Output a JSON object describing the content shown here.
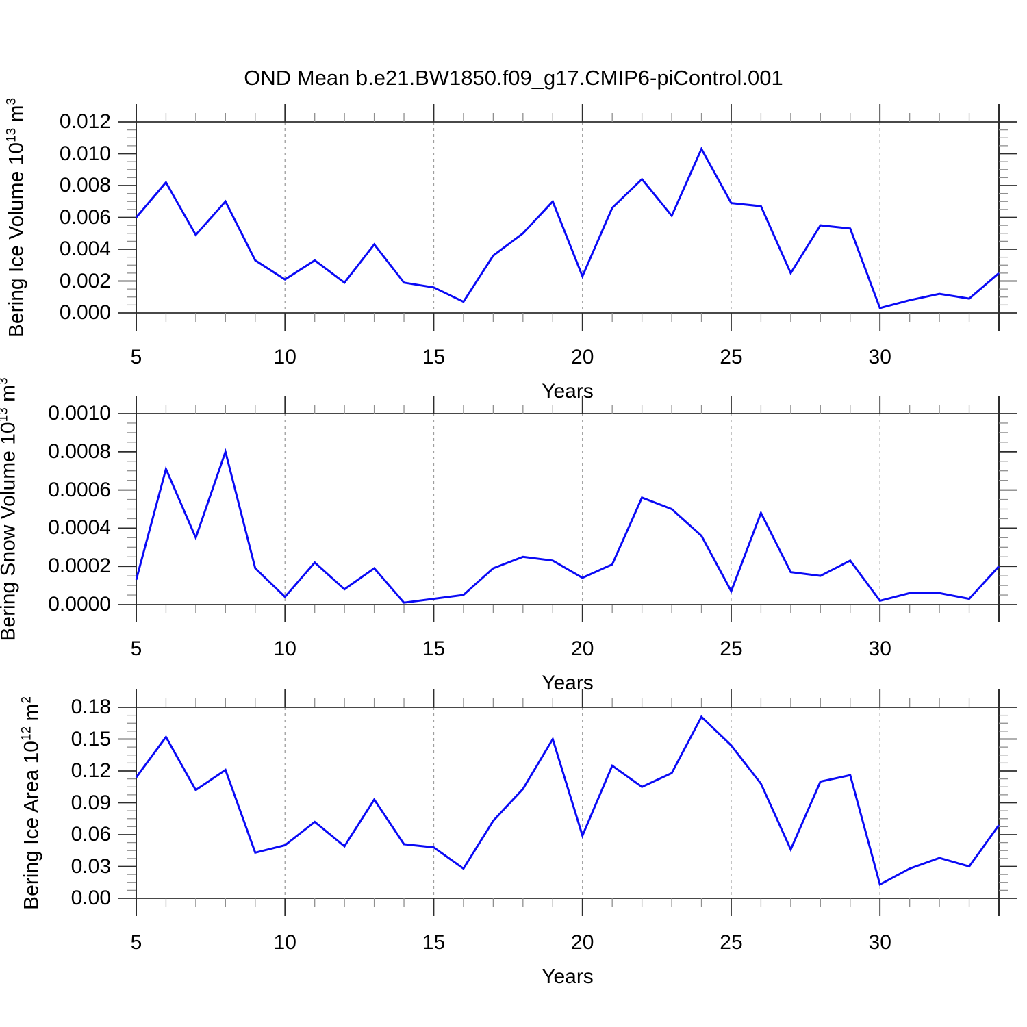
{
  "figure": {
    "title": "OND Mean b.e21.BW1850.f09_g17.CMIP6-piControl.001"
  },
  "style": {
    "line_color": "#0a0af5",
    "grid_color": "#9e9e9e",
    "axis_color": "#2e2e2e",
    "minor_tick_color": "#8f8f8f",
    "background": "#ffffff",
    "text_color": "#000000"
  },
  "chart_data": [
    {
      "type": "line",
      "name": "bering-ice-volume",
      "ylabel": "Bering Ice Volume 10^13 m^3",
      "ylabel_rich": [
        [
          "Bering Ice Volume 10",
          0
        ],
        [
          "13",
          1
        ],
        [
          " m",
          0
        ],
        [
          "3",
          1
        ]
      ],
      "xlabel": "Years",
      "x": [
        5,
        6,
        7,
        8,
        9,
        10,
        11,
        12,
        13,
        14,
        15,
        16,
        17,
        18,
        19,
        20,
        21,
        22,
        23,
        24,
        25,
        26,
        27,
        28,
        29,
        30,
        31,
        32,
        33,
        34
      ],
      "y": [
        0.006,
        0.0082,
        0.0049,
        0.007,
        0.0033,
        0.0021,
        0.0033,
        0.0019,
        0.0043,
        0.0019,
        0.0016,
        0.0007,
        0.0036,
        0.005,
        0.007,
        0.0023,
        0.0066,
        0.0084,
        0.0061,
        0.0103,
        0.0069,
        0.0067,
        0.0025,
        0.0055,
        0.0053,
        0.0003,
        0.0008,
        0.0012,
        0.0009,
        0.0025
      ],
      "xlim": [
        5,
        34
      ],
      "ylim": [
        0,
        0.012
      ],
      "yticks": [
        "0.000",
        "0.002",
        "0.004",
        "0.006",
        "0.008",
        "0.010",
        "0.012"
      ],
      "y_minor_step": 0.0005,
      "xticks": [
        5,
        10,
        15,
        20,
        25,
        30
      ],
      "x_minor_step": 1,
      "gridlines_x": [
        10,
        15,
        20,
        25,
        30
      ],
      "legend": "none",
      "grid": "vertical-dashed"
    },
    {
      "type": "line",
      "name": "bering-snow-volume",
      "ylabel": "Bering Snow Volume 10^13 m^3",
      "ylabel_rich": [
        [
          "Bering Snow Volume 10",
          0
        ],
        [
          "13",
          1
        ],
        [
          " m",
          0
        ],
        [
          "3",
          1
        ]
      ],
      "xlabel": "Years",
      "x": [
        5,
        6,
        7,
        8,
        9,
        10,
        11,
        12,
        13,
        14,
        15,
        16,
        17,
        18,
        19,
        20,
        21,
        22,
        23,
        24,
        25,
        26,
        27,
        28,
        29,
        30,
        31,
        32,
        33,
        34
      ],
      "y": [
        0.00013,
        0.00071,
        0.00035,
        0.0008,
        0.00019,
        4e-05,
        0.00022,
        8e-05,
        0.00019,
        1e-05,
        3e-05,
        5e-05,
        0.00019,
        0.00025,
        0.00023,
        0.00014,
        0.00021,
        0.00056,
        0.0005,
        0.00036,
        7e-05,
        0.00048,
        0.00017,
        0.00015,
        0.00023,
        2e-05,
        6e-05,
        6e-05,
        3e-05,
        0.0002
      ],
      "xlim": [
        5,
        34
      ],
      "ylim": [
        0,
        0.001
      ],
      "yticks": [
        "0.0000",
        "0.0002",
        "0.0004",
        "0.0006",
        "0.0008",
        "0.0010"
      ],
      "y_minor_step": 5e-05,
      "xticks": [
        5,
        10,
        15,
        20,
        25,
        30
      ],
      "x_minor_step": 1,
      "gridlines_x": [
        10,
        15,
        20,
        25,
        30
      ],
      "legend": "none",
      "grid": "vertical-dashed"
    },
    {
      "type": "line",
      "name": "bering-ice-area",
      "ylabel": "Bering Ice Area 10^12 m^2",
      "ylabel_rich": [
        [
          "Bering Ice Area 10",
          0
        ],
        [
          "12",
          1
        ],
        [
          " m",
          0
        ],
        [
          "2",
          1
        ]
      ],
      "xlabel": "Years",
      "x": [
        5,
        6,
        7,
        8,
        9,
        10,
        11,
        12,
        13,
        14,
        15,
        16,
        17,
        18,
        19,
        20,
        21,
        22,
        23,
        24,
        25,
        26,
        27,
        28,
        29,
        30,
        31,
        32,
        33,
        34
      ],
      "y": [
        0.114,
        0.152,
        0.102,
        0.121,
        0.043,
        0.05,
        0.072,
        0.049,
        0.093,
        0.051,
        0.048,
        0.028,
        0.073,
        0.103,
        0.15,
        0.059,
        0.125,
        0.105,
        0.118,
        0.171,
        0.144,
        0.108,
        0.046,
        0.11,
        0.116,
        0.013,
        0.028,
        0.038,
        0.03,
        0.069
      ],
      "xlim": [
        5,
        34
      ],
      "ylim": [
        0,
        0.18
      ],
      "yticks": [
        "0.00",
        "0.03",
        "0.06",
        "0.09",
        "0.12",
        "0.15",
        "0.18"
      ],
      "y_minor_step": 0.0075,
      "xticks": [
        5,
        10,
        15,
        20,
        25,
        30
      ],
      "x_minor_step": 1,
      "gridlines_x": [
        10,
        15,
        20,
        25,
        30
      ],
      "legend": "none",
      "grid": "vertical-dashed"
    }
  ]
}
